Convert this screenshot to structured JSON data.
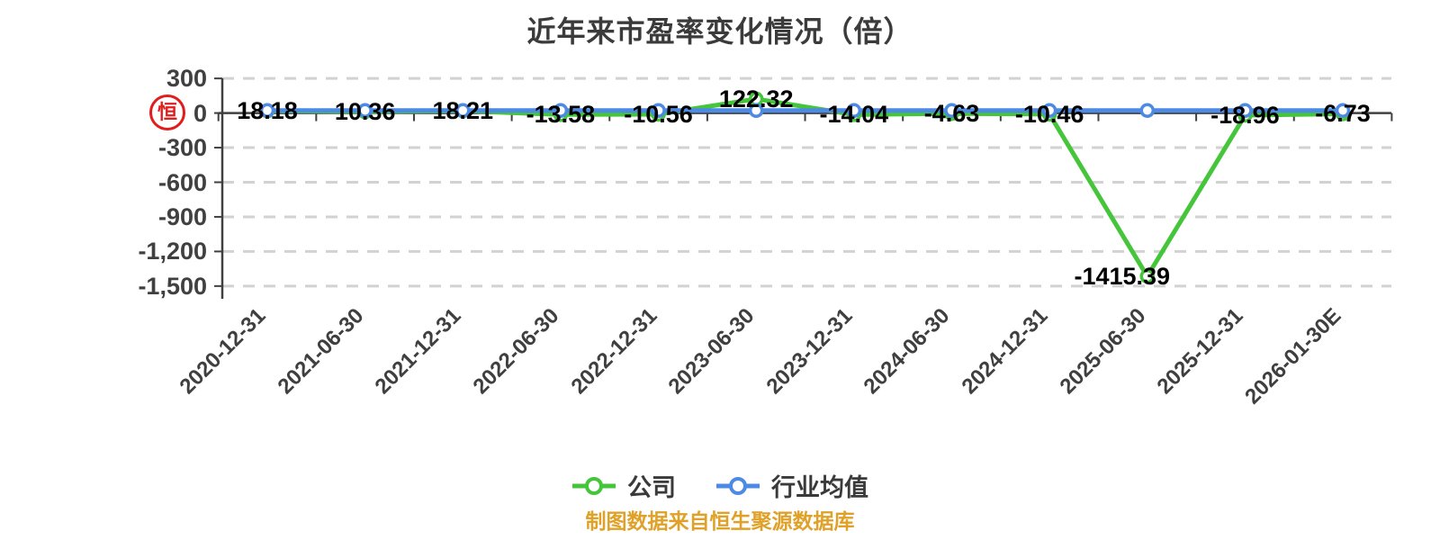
{
  "title": "近年来市盈率变化情况（倍）",
  "watermark": {
    "char": "恒",
    "color": "#e11d1d"
  },
  "footer": "制图数据来自恒生聚源数据库",
  "colors": {
    "company": "#45c53a",
    "industry": "#4d8ae4",
    "axis": "#404040",
    "grid": "#d2d2d2",
    "label": "#000000",
    "footer": "#dfa128",
    "title": "#3b3b3b"
  },
  "legend": [
    {
      "name": "公司",
      "color": "#45c53a"
    },
    {
      "name": "行业均值",
      "color": "#4d8ae4"
    }
  ],
  "chart_data": {
    "type": "line",
    "title": "近年来市盈率变化情况（倍）",
    "categories": [
      "2020-12-31",
      "2021-06-30",
      "2021-12-31",
      "2022-06-30",
      "2022-12-31",
      "2023-06-30",
      "2023-12-31",
      "2024-06-30",
      "2024-12-31",
      "2025-06-30",
      "2025-12-31",
      "2026-01-30E"
    ],
    "series": [
      {
        "name": "公司",
        "color": "#45c53a",
        "values": [
          18.18,
          10.36,
          18.21,
          -13.58,
          -10.56,
          122.32,
          -14.04,
          -4.63,
          -10.46,
          -1415.39,
          -18.96,
          -6.73
        ],
        "labeled": true
      },
      {
        "name": "行业均值",
        "color": "#4d8ae4",
        "values": [
          22,
          22,
          22,
          22,
          22,
          22,
          22,
          22,
          22,
          22,
          22,
          22
        ],
        "labeled": false,
        "estimated": true
      }
    ],
    "ylim": [
      -1500,
      300
    ],
    "y_ticks": [
      {
        "v": 300,
        "label": "300"
      },
      {
        "v": 0,
        "label": "0"
      },
      {
        "v": -300,
        "label": "-300"
      },
      {
        "v": -600,
        "label": "-600"
      },
      {
        "v": -900,
        "label": "-900"
      },
      {
        "v": -1200,
        "label": "-1,200"
      },
      {
        "v": -1500,
        "label": "-1,500"
      }
    ],
    "grid": "dashed horizontal lines at non-zero ticks, solid axis line at 0",
    "legend_position": "bottom"
  }
}
